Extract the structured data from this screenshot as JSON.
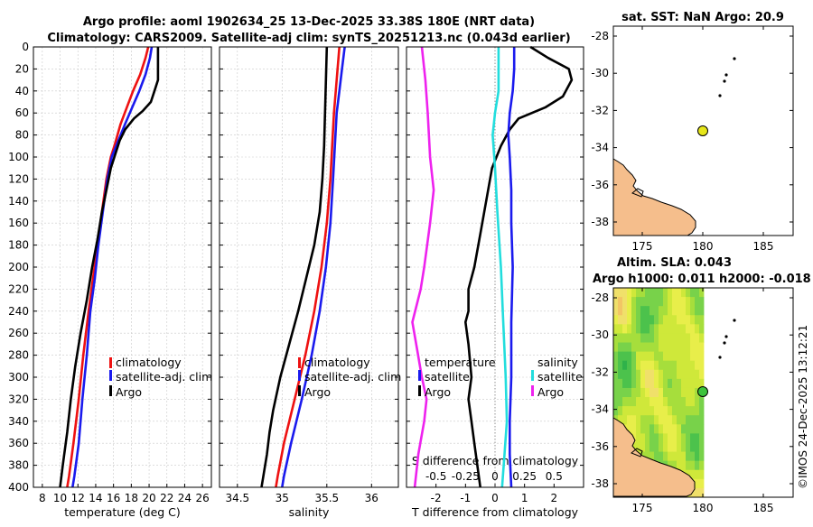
{
  "header": {
    "title_line1": "Argo profile: aoml 1902634_25 13-Dec-2025 33.38S 180E (NRT data)",
    "title_line2": "Climatology: CARS2009. Satellite-adj clim: synTS_20251213.nc (0.043d earlier)",
    "credit": "©IMOS 24-Dec-2025 13:12:21"
  },
  "colors": {
    "climatology": "#ee1111",
    "satellite_adj": "#1a1aee",
    "argo": "#000000",
    "satellite_salinity": "#22dddd",
    "argo_salinity": "#ee22ee",
    "land": "#f5be8c",
    "argo_marker": "#e6e61a"
  },
  "chart_data": [
    {
      "type": "line",
      "id": "temperature",
      "xlabel": "temperature (deg C)",
      "xlim": [
        7,
        27
      ],
      "xticks": [
        "8",
        "10",
        "12",
        "14",
        "16",
        "18",
        "20",
        "22",
        "24",
        "26"
      ],
      "ylim": [
        400,
        0
      ],
      "yticks": [
        "0",
        "20",
        "40",
        "60",
        "80",
        "100",
        "120",
        "140",
        "160",
        "180",
        "200",
        "220",
        "240",
        "260",
        "280",
        "300",
        "320",
        "340",
        "360",
        "380",
        "400"
      ],
      "legend": [
        "climatology",
        "satellite-adj. clim",
        "Argo"
      ],
      "series": [
        {
          "name": "climatology",
          "color": "#ee1111",
          "points": [
            [
              19.9,
              0
            ],
            [
              19.6,
              10
            ],
            [
              19.0,
              25
            ],
            [
              18.2,
              40
            ],
            [
              17.5,
              55
            ],
            [
              16.8,
              70
            ],
            [
              16.1,
              90
            ],
            [
              15.7,
              100
            ],
            [
              15.2,
              120
            ],
            [
              14.7,
              150
            ],
            [
              14.2,
              180
            ],
            [
              13.7,
              210
            ],
            [
              13.2,
              240
            ],
            [
              12.6,
              280
            ],
            [
              12.1,
              320
            ],
            [
              11.5,
              360
            ],
            [
              11.0,
              390
            ],
            [
              10.8,
              400
            ]
          ]
        },
        {
          "name": "satellite-adj. clim",
          "color": "#1a1aee",
          "points": [
            [
              20.3,
              0
            ],
            [
              20.1,
              10
            ],
            [
              19.6,
              25
            ],
            [
              18.9,
              40
            ],
            [
              18.1,
              55
            ],
            [
              17.3,
              70
            ],
            [
              16.3,
              90
            ],
            [
              15.8,
              100
            ],
            [
              15.3,
              120
            ],
            [
              14.8,
              150
            ],
            [
              14.3,
              180
            ],
            [
              13.9,
              210
            ],
            [
              13.4,
              240
            ],
            [
              13.0,
              280
            ],
            [
              12.5,
              320
            ],
            [
              12.1,
              360
            ],
            [
              11.6,
              390
            ],
            [
              11.4,
              400
            ]
          ]
        },
        {
          "name": "Argo",
          "color": "#000000",
          "points": [
            [
              21.0,
              0
            ],
            [
              21.0,
              30
            ],
            [
              20.6,
              40
            ],
            [
              20.2,
              50
            ],
            [
              19.3,
              58
            ],
            [
              18.3,
              65
            ],
            [
              17.3,
              75
            ],
            [
              16.7,
              85
            ],
            [
              16.3,
              95
            ],
            [
              15.7,
              110
            ],
            [
              15.2,
              130
            ],
            [
              14.7,
              150
            ],
            [
              14.2,
              175
            ],
            [
              13.6,
              200
            ],
            [
              13.0,
              230
            ],
            [
              12.3,
              260
            ],
            [
              11.7,
              290
            ],
            [
              11.2,
              320
            ],
            [
              10.8,
              350
            ],
            [
              10.3,
              380
            ],
            [
              10.0,
              400
            ]
          ]
        }
      ]
    },
    {
      "type": "line",
      "id": "salinity",
      "xlabel": "salinity",
      "xlim": [
        34.3,
        36.3
      ],
      "xticks": [
        "34.5",
        "35",
        "35.5",
        "36"
      ],
      "ylim": [
        400,
        0
      ],
      "legend": [
        "climatology",
        "satellite-adj. clim",
        "Argo"
      ],
      "series": [
        {
          "name": "climatology",
          "color": "#ee1111",
          "points": [
            [
              35.64,
              0
            ],
            [
              35.62,
              20
            ],
            [
              35.6,
              40
            ],
            [
              35.58,
              60
            ],
            [
              35.56,
              90
            ],
            [
              35.54,
              120
            ],
            [
              35.5,
              160
            ],
            [
              35.44,
              200
            ],
            [
              35.36,
              240
            ],
            [
              35.26,
              280
            ],
            [
              35.14,
              320
            ],
            [
              35.02,
              360
            ],
            [
              34.95,
              390
            ],
            [
              34.93,
              400
            ]
          ]
        },
        {
          "name": "satellite-adj. clim",
          "color": "#1a1aee",
          "points": [
            [
              35.7,
              0
            ],
            [
              35.67,
              20
            ],
            [
              35.64,
              40
            ],
            [
              35.61,
              60
            ],
            [
              35.59,
              90
            ],
            [
              35.57,
              120
            ],
            [
              35.54,
              160
            ],
            [
              35.49,
              200
            ],
            [
              35.42,
              240
            ],
            [
              35.33,
              280
            ],
            [
              35.22,
              320
            ],
            [
              35.1,
              360
            ],
            [
              35.02,
              390
            ],
            [
              35.0,
              400
            ]
          ]
        },
        {
          "name": "Argo",
          "color": "#000000",
          "points": [
            [
              35.5,
              0
            ],
            [
              35.49,
              30
            ],
            [
              35.48,
              60
            ],
            [
              35.47,
              90
            ],
            [
              35.45,
              120
            ],
            [
              35.42,
              150
            ],
            [
              35.36,
              180
            ],
            [
              35.27,
              210
            ],
            [
              35.18,
              240
            ],
            [
              35.08,
              270
            ],
            [
              34.98,
              300
            ],
            [
              34.9,
              330
            ],
            [
              34.86,
              350
            ],
            [
              34.83,
              370
            ],
            [
              34.79,
              390
            ],
            [
              34.77,
              400
            ]
          ]
        }
      ]
    },
    {
      "type": "line",
      "id": "difference",
      "xlabel": "T difference from climatology",
      "xlim": [
        -3,
        3
      ],
      "xticks": [
        "-2",
        "-1",
        "0",
        "1",
        "2"
      ],
      "top_xlabel": "S difference from climatology",
      "top_xticks": [
        "-0.5",
        "-0.25",
        "0",
        "0.25",
        "0.5"
      ],
      "ylim": [
        400,
        0
      ],
      "legend_temperature_title": "temperature",
      "legend_temperature": [
        "satellite",
        "Argo"
      ],
      "legend_salinity_title": "salinity",
      "legend_salinity": [
        "satellite",
        "Argo"
      ],
      "series": [
        {
          "name": "temperature Argo",
          "color": "#000000",
          "points": [
            [
              1.2,
              0
            ],
            [
              1.8,
              10
            ],
            [
              2.5,
              20
            ],
            [
              2.6,
              30
            ],
            [
              2.3,
              45
            ],
            [
              1.7,
              55
            ],
            [
              0.8,
              65
            ],
            [
              0.5,
              75
            ],
            [
              0.2,
              90
            ],
            [
              -0.1,
              110
            ],
            [
              -0.3,
              140
            ],
            [
              -0.5,
              170
            ],
            [
              -0.7,
              200
            ],
            [
              -0.9,
              220
            ],
            [
              -0.9,
              240
            ],
            [
              -1.0,
              250
            ],
            [
              -0.9,
              270
            ],
            [
              -0.8,
              300
            ],
            [
              -0.9,
              320
            ],
            [
              -0.8,
              340
            ],
            [
              -0.7,
              360
            ],
            [
              -0.6,
              380
            ],
            [
              -0.5,
              400
            ]
          ]
        },
        {
          "name": "temperature satellite",
          "color": "#1a1aee",
          "points": [
            [
              0.65,
              0
            ],
            [
              0.65,
              20
            ],
            [
              0.6,
              40
            ],
            [
              0.5,
              60
            ],
            [
              0.45,
              80
            ],
            [
              0.5,
              100
            ],
            [
              0.55,
              130
            ],
            [
              0.55,
              160
            ],
            [
              0.6,
              200
            ],
            [
              0.55,
              250
            ],
            [
              0.55,
              300
            ],
            [
              0.5,
              340
            ],
            [
              0.5,
              370
            ],
            [
              0.55,
              400
            ]
          ]
        },
        {
          "name": "salinity satellite",
          "color": "#22dddd",
          "points": [
            [
              0.03,
              0
            ],
            [
              0.03,
              40
            ],
            [
              0.0,
              60
            ],
            [
              -0.02,
              80
            ],
            [
              0.0,
              110
            ],
            [
              0.02,
              150
            ],
            [
              0.05,
              200
            ],
            [
              0.07,
              250
            ],
            [
              0.09,
              300
            ],
            [
              0.1,
              340
            ],
            [
              0.08,
              370
            ],
            [
              0.06,
              400
            ]
          ]
        },
        {
          "name": "salinity Argo",
          "color": "#ee22ee",
          "points": [
            [
              -0.62,
              0
            ],
            [
              -0.59,
              30
            ],
            [
              -0.57,
              60
            ],
            [
              -0.55,
              100
            ],
            [
              -0.52,
              130
            ],
            [
              -0.55,
              160
            ],
            [
              -0.6,
              200
            ],
            [
              -0.63,
              220
            ],
            [
              -0.7,
              250
            ],
            [
              -0.66,
              275
            ],
            [
              -0.62,
              300
            ],
            [
              -0.58,
              320
            ],
            [
              -0.6,
              340
            ],
            [
              -0.65,
              370
            ],
            [
              -0.68,
              400
            ]
          ]
        }
      ]
    }
  ],
  "map_top": {
    "title": "sat. SST: NaN Argo: 20.9",
    "xticks": [
      "175",
      "180",
      "185"
    ],
    "yticks": [
      "-28",
      "-30",
      "-32",
      "-34",
      "-36",
      "-38"
    ]
  },
  "map_bottom": {
    "title_line1": "Altim. SLA: 0.043",
    "title_line2": "Argo h1000: 0.011 h2000: -0.018",
    "xticks": [
      "175",
      "180",
      "185"
    ],
    "yticks": [
      "-28",
      "-30",
      "-32",
      "-34",
      "-36",
      "-38"
    ]
  }
}
